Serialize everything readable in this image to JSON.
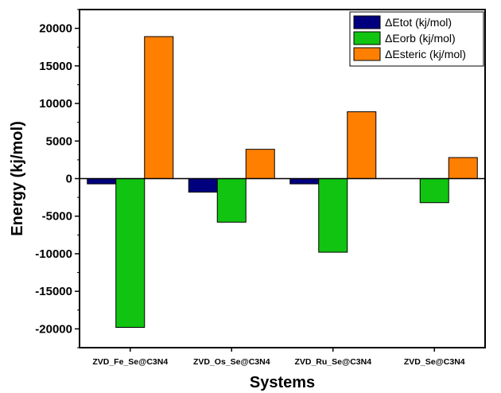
{
  "chart_data": {
    "type": "bar",
    "categories": [
      "ZVD_Fe_Se@C3N4",
      "ZVD_Os_Se@C3N4",
      "ZVD_Ru_Se@C3N4",
      "ZVD_Se@C3N4"
    ],
    "series": [
      {
        "name": "ΔEtot (kj/mol)",
        "color": "#00007f",
        "values": [
          -700,
          -1800,
          -700,
          0
        ]
      },
      {
        "name": "ΔEorb (kj/mol)",
        "color": "#11c411",
        "values": [
          -19800,
          -5800,
          -9800,
          -3200
        ]
      },
      {
        "name": "ΔEsteric  (kj/mol)",
        "color": "#ff7f00",
        "values": [
          18900,
          3900,
          8900,
          2800
        ]
      }
    ],
    "xlabel": "Systems",
    "ylabel": "Energy (kj/mol)",
    "ylim": [
      -22500,
      22500
    ],
    "yticks": [
      -20000,
      -15000,
      -10000,
      -5000,
      0,
      5000,
      10000,
      15000,
      20000
    ],
    "legend_position": "top-right",
    "grid": false
  }
}
